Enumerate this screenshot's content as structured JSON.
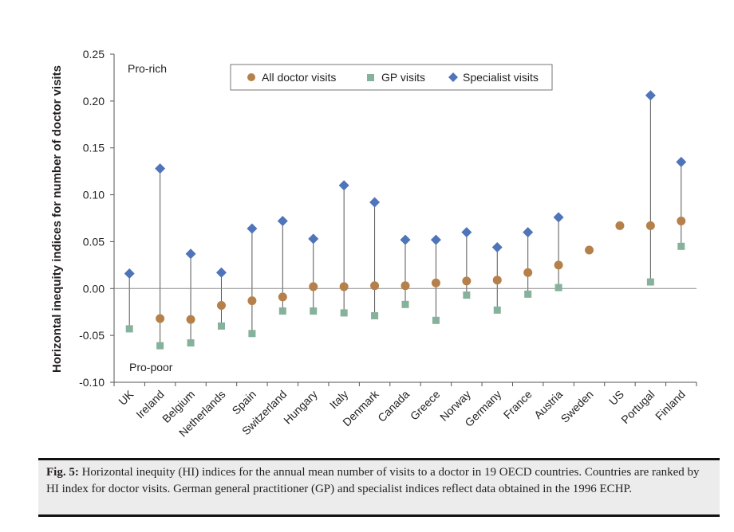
{
  "chart_data": {
    "type": "scatter",
    "ylabel": "Horizontal inequity indices for number of doctor visits",
    "ylim": [
      -0.1,
      0.25
    ],
    "yticks": [
      0.25,
      0.2,
      0.15,
      0.1,
      0.05,
      0.0,
      -0.05,
      -0.1
    ],
    "ytick_labels": [
      "0.25",
      "0.20",
      "0.15",
      "0.10",
      "0.05",
      "0.00",
      "-0.05",
      "-0.10"
    ],
    "categories": [
      "UK",
      "Ireland",
      "Belgium",
      "Netherlands",
      "Spain",
      "Switzerland",
      "Hungary",
      "Italy",
      "Denmark",
      "Canada",
      "Greece",
      "Norway",
      "Germany",
      "France",
      "Austria",
      "Sweden",
      "US",
      "Portugal",
      "Finland"
    ],
    "series": [
      {
        "name": "All doctor visits",
        "marker": "circle",
        "color": "#b5804a",
        "values": [
          null,
          -0.032,
          -0.033,
          -0.018,
          -0.013,
          -0.009,
          0.002,
          0.002,
          0.003,
          0.003,
          0.006,
          0.008,
          0.009,
          0.017,
          0.025,
          0.041,
          0.067,
          0.067,
          0.072
        ]
      },
      {
        "name": "GP visits",
        "marker": "square",
        "color": "#86b19b",
        "values": [
          -0.043,
          -0.061,
          -0.058,
          -0.04,
          -0.048,
          -0.024,
          -0.024,
          -0.026,
          -0.029,
          -0.017,
          -0.034,
          -0.007,
          -0.023,
          -0.006,
          0.001,
          null,
          null,
          0.007,
          0.045
        ]
      },
      {
        "name": "Specialist visits",
        "marker": "diamond",
        "color": "#4f74b9",
        "values": [
          0.016,
          0.128,
          0.037,
          0.017,
          0.064,
          0.072,
          0.053,
          0.11,
          0.092,
          0.052,
          0.052,
          0.06,
          0.044,
          0.06,
          0.076,
          null,
          null,
          0.206,
          0.135
        ]
      }
    ],
    "annotations": {
      "top": "Pro-rich",
      "bottom": "Pro-poor"
    },
    "legend_position": "top-center"
  },
  "caption": {
    "label": "Fig. 5:",
    "text": " Horizontal inequity (HI) indices for the annual mean number of visits to a doctor in 19 OECD countries. Countries are ranked by HI index for doctor visits. German general practitioner (GP) and specialist indices reflect data obtained in the 1996 ECHP."
  }
}
